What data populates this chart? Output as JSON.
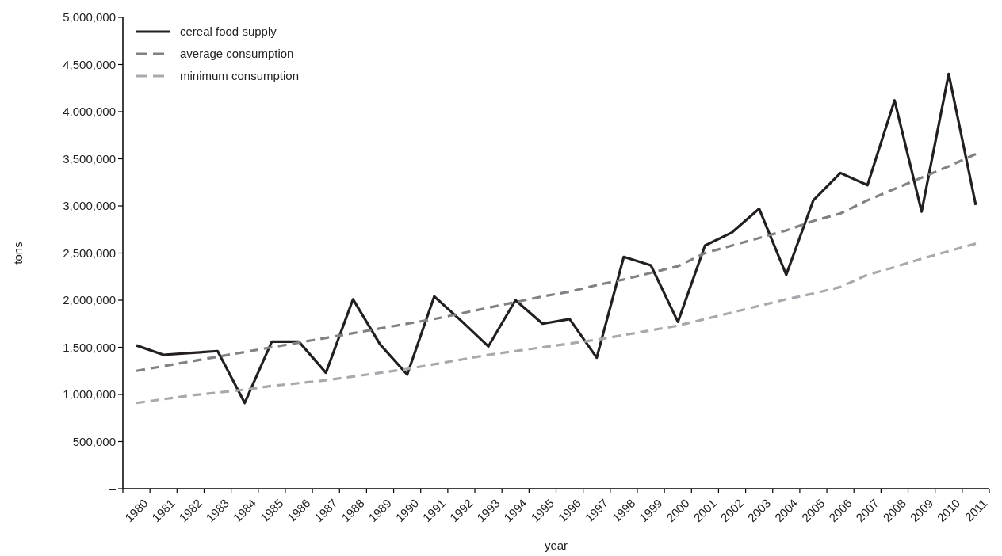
{
  "chart_data": {
    "type": "line",
    "xlabel": "year",
    "ylabel": "tons",
    "categories": [
      "1980",
      "1981",
      "1982",
      "1983",
      "1984",
      "1985",
      "1986",
      "1987",
      "1988",
      "1989",
      "1990",
      "1991",
      "1992",
      "1993",
      "1994",
      "1995",
      "1996",
      "1997",
      "1998",
      "1999",
      "2000",
      "2001",
      "2002",
      "2003",
      "2004",
      "2005",
      "2006",
      "2007",
      "2008",
      "2009",
      "2010",
      "2011"
    ],
    "series": [
      {
        "name": "cereal food supply",
        "color": "#231f20",
        "line_style": "solid",
        "values": [
          1520000,
          1420000,
          1440000,
          1460000,
          910000,
          1560000,
          1560000,
          1230000,
          2010000,
          1530000,
          1210000,
          2040000,
          1780000,
          1510000,
          2000000,
          1750000,
          1800000,
          1390000,
          2460000,
          2370000,
          1770000,
          2580000,
          2720000,
          2970000,
          2270000,
          3060000,
          3350000,
          3220000,
          4120000,
          2940000,
          4400000,
          3010000
        ]
      },
      {
        "name": "average consumption",
        "color": "#808285",
        "line_style": "dashed",
        "values": [
          1250000,
          1300000,
          1350000,
          1400000,
          1450000,
          1500000,
          1550000,
          1600000,
          1650000,
          1700000,
          1750000,
          1800000,
          1860000,
          1920000,
          1980000,
          2040000,
          2090000,
          2160000,
          2220000,
          2290000,
          2360000,
          2500000,
          2580000,
          2660000,
          2740000,
          2840000,
          2920000,
          3060000,
          3180000,
          3300000,
          3420000,
          3550000
        ]
      },
      {
        "name": "minimum consumption",
        "color": "#a7a9ac",
        "line_style": "dashed",
        "values": [
          910000,
          950000,
          990000,
          1020000,
          1050000,
          1090000,
          1120000,
          1150000,
          1190000,
          1230000,
          1270000,
          1320000,
          1370000,
          1420000,
          1460000,
          1500000,
          1540000,
          1580000,
          1630000,
          1680000,
          1730000,
          1800000,
          1870000,
          1940000,
          2010000,
          2070000,
          2140000,
          2270000,
          2350000,
          2440000,
          2520000,
          2600000
        ]
      }
    ],
    "ylim": [
      0,
      5000000
    ],
    "yticks": [
      {
        "value": 0,
        "label": "–"
      },
      {
        "value": 500000,
        "label": "500,000"
      },
      {
        "value": 1000000,
        "label": "1,000,000"
      },
      {
        "value": 1500000,
        "label": "1,500,000"
      },
      {
        "value": 2000000,
        "label": "2,000,000"
      },
      {
        "value": 2500000,
        "label": "2,500,000"
      },
      {
        "value": 3000000,
        "label": "3,000,000"
      },
      {
        "value": 3500000,
        "label": "3,500,000"
      },
      {
        "value": 4000000,
        "label": "4,000,000"
      },
      {
        "value": 4500000,
        "label": "4,500,000"
      },
      {
        "value": 5000000,
        "label": "5,000,000"
      }
    ],
    "grid": false,
    "legend": "top left",
    "marker": "none"
  }
}
